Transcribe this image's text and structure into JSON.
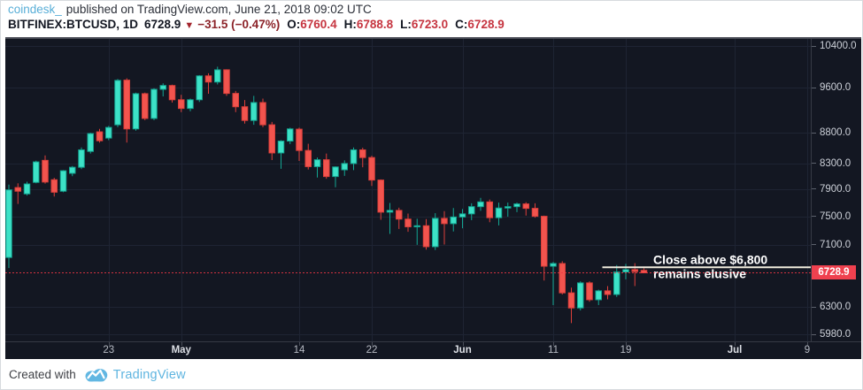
{
  "header": {
    "attribution": {
      "source": "coindesk_",
      "text": "published on TradingView.com, June 21, 2018 09:02 UTC"
    },
    "symbol_line": {
      "symbol": "BITFINEX:BTCUSD, 1D",
      "last": "6728.9",
      "direction": "▼",
      "change": "−31.5 (−0.47%)",
      "o_label": "O:",
      "o": "6760.4",
      "h_label": "H:",
      "h": "6788.8",
      "l_label": "L:",
      "l": "6723.0",
      "c_label": "C:",
      "c": "6728.9"
    }
  },
  "footer": {
    "created_with": "Created with",
    "brand": "TradingView"
  },
  "colors": {
    "chart_background": "#131722",
    "grid": "#1e2433",
    "up_fill": "#3de2c7",
    "up_border": "#13a692",
    "down_fill": "#f2544e",
    "down_border": "#dd3f3a",
    "last_price_line": "#f23645",
    "badge_background": "#ef414f",
    "level_line": "#f0ebdc",
    "annotation_text": "#ffffff",
    "accent_blue": "#58aed7"
  },
  "chart_data": {
    "type": "candlestick",
    "symbol": "BITFINEX:BTCUSD",
    "interval": "1D",
    "scale": "log",
    "grid": true,
    "price_axis": [
      {
        "label": "10400.0",
        "value": 10400
      },
      {
        "label": "9600.0",
        "value": 9600
      },
      {
        "label": "8800.0",
        "value": 8800
      },
      {
        "label": "8300.0",
        "value": 8300
      },
      {
        "label": "7900.0",
        "value": 7900
      },
      {
        "label": "7500.0",
        "value": 7500
      },
      {
        "label": "7100.0",
        "value": 7100
      },
      {
        "label": "6300.0",
        "value": 6300
      },
      {
        "label": "5980.0",
        "value": 5980
      }
    ],
    "last_price": {
      "label": "6728.9",
      "value": 6728.9
    },
    "time_axis": [
      {
        "label": "23",
        "index": 11,
        "major": false
      },
      {
        "label": "May",
        "index": 19,
        "major": true
      },
      {
        "label": "14",
        "index": 32,
        "major": false
      },
      {
        "label": "22",
        "index": 40,
        "major": false
      },
      {
        "label": "Jun",
        "index": 50,
        "major": true
      },
      {
        "label": "11",
        "index": 60,
        "major": false
      },
      {
        "label": "19",
        "index": 68,
        "major": false
      },
      {
        "label": "Jul",
        "index": 80,
        "major": true
      },
      {
        "label": "9",
        "index": 88,
        "major": false
      }
    ],
    "annotation": {
      "line1": "Close above $6,800",
      "line2": "remains elusive",
      "price": 6800,
      "start_index": 66
    },
    "candles": [
      [
        "Apr 12",
        6930,
        7970,
        6790,
        7890
      ],
      [
        "Apr 13",
        7925,
        7990,
        7680,
        7870
      ],
      [
        "Apr 14",
        7830,
        8015,
        7805,
        7980
      ],
      [
        "Apr 15",
        8005,
        8345,
        7990,
        8325
      ],
      [
        "Apr 16",
        8350,
        8430,
        7985,
        8010
      ],
      [
        "Apr 17",
        8045,
        8075,
        7790,
        7855
      ],
      [
        "Apr 18",
        7870,
        8195,
        7855,
        8185
      ],
      [
        "Apr 19",
        8145,
        8260,
        8100,
        8240
      ],
      [
        "Apr 20",
        8240,
        8560,
        8210,
        8520
      ],
      [
        "Apr 21",
        8495,
        8805,
        8460,
        8790
      ],
      [
        "Apr 22",
        8820,
        8870,
        8640,
        8670
      ],
      [
        "Apr 23",
        8715,
        8920,
        8680,
        8895
      ],
      [
        "Apr 24",
        8940,
        9760,
        8900,
        9735
      ],
      [
        "Apr 25",
        9740,
        9775,
        8640,
        8870
      ],
      [
        "Apr 26",
        8870,
        9510,
        8840,
        9490
      ],
      [
        "Apr 27",
        9490,
        9510,
        9020,
        9050
      ],
      [
        "Apr 28",
        9050,
        9590,
        9020,
        9570
      ],
      [
        "Apr 29",
        9570,
        9680,
        9440,
        9640
      ],
      [
        "Apr 30",
        9640,
        9655,
        9330,
        9380
      ],
      [
        "May 1",
        9380,
        9470,
        9160,
        9225
      ],
      [
        "May 2",
        9225,
        9400,
        9175,
        9380
      ],
      [
        "May 3",
        9380,
        9835,
        9340,
        9820
      ],
      [
        "May 4",
        9820,
        9870,
        9490,
        9705
      ],
      [
        "May 5",
        9705,
        9995,
        9660,
        9935
      ],
      [
        "May 6",
        9935,
        9945,
        9450,
        9495
      ],
      [
        "May 7",
        9495,
        9540,
        9160,
        9255
      ],
      [
        "May 8",
        9255,
        9375,
        8960,
        9015
      ],
      [
        "May 9",
        9015,
        9450,
        8940,
        9330
      ],
      [
        "May 10",
        9330,
        9400,
        8900,
        8940
      ],
      [
        "May 11",
        8940,
        8990,
        8355,
        8470
      ],
      [
        "May 12",
        8470,
        8680,
        8215,
        8665
      ],
      [
        "May 13",
        8665,
        8890,
        8615,
        8870
      ],
      [
        "May 14",
        8865,
        8890,
        8340,
        8510
      ],
      [
        "May 15",
        8510,
        8620,
        8205,
        8250
      ],
      [
        "May 16",
        8250,
        8395,
        8080,
        8360
      ],
      [
        "May 17",
        8360,
        8460,
        8060,
        8095
      ],
      [
        "May 18",
        8095,
        8255,
        7930,
        8245
      ],
      [
        "May 19",
        8200,
        8350,
        8105,
        8300
      ],
      [
        "May 20",
        8300,
        8560,
        8195,
        8520
      ],
      [
        "May 21",
        8520,
        8555,
        8240,
        8395
      ],
      [
        "May 22",
        8395,
        8425,
        7950,
        8040
      ],
      [
        "May 23",
        8040,
        8050,
        7450,
        7560
      ],
      [
        "May 24",
        7560,
        7695,
        7250,
        7585
      ],
      [
        "May 25",
        7585,
        7625,
        7320,
        7460
      ],
      [
        "May 26",
        7460,
        7540,
        7280,
        7350
      ],
      [
        "May 27",
        7350,
        7465,
        7100,
        7365
      ],
      [
        "May 28",
        7365,
        7460,
        7035,
        7075
      ],
      [
        "May 29",
        7075,
        7545,
        7030,
        7470
      ],
      [
        "May 30",
        7470,
        7575,
        7105,
        7395
      ],
      [
        "May 31",
        7395,
        7620,
        7285,
        7490
      ],
      [
        "Jun 1",
        7490,
        7605,
        7330,
        7535
      ],
      [
        "Jun 2",
        7535,
        7690,
        7445,
        7640
      ],
      [
        "Jun 3",
        7640,
        7770,
        7580,
        7710
      ],
      [
        "Jun 4",
        7710,
        7745,
        7415,
        7480
      ],
      [
        "Jun 5",
        7480,
        7700,
        7370,
        7620
      ],
      [
        "Jun 6",
        7620,
        7700,
        7495,
        7640
      ],
      [
        "Jun 7",
        7640,
        7700,
        7560,
        7680
      ],
      [
        "Jun 8",
        7680,
        7705,
        7510,
        7615
      ],
      [
        "Jun 9",
        7615,
        7690,
        7480,
        7500
      ],
      [
        "Jun 10",
        7500,
        7510,
        6630,
        6815
      ],
      [
        "Jun 11",
        6815,
        6870,
        6325,
        6850
      ],
      [
        "Jun 12",
        6850,
        6880,
        6455,
        6475
      ],
      [
        "Jun 13",
        6475,
        6540,
        6110,
        6290
      ],
      [
        "Jun 14",
        6290,
        6620,
        6260,
        6600
      ],
      [
        "Jun 15",
        6600,
        6620,
        6365,
        6390
      ],
      [
        "Jun 16",
        6390,
        6515,
        6325,
        6500
      ],
      [
        "Jun 17",
        6500,
        6560,
        6395,
        6455
      ],
      [
        "Jun 18",
        6455,
        6830,
        6425,
        6740
      ],
      [
        "Jun 19",
        6740,
        6845,
        6645,
        6770
      ],
      [
        "Jun 20",
        6770,
        6855,
        6560,
        6745
      ],
      [
        "Jun 21",
        6760.4,
        6788.8,
        6723.0,
        6728.9
      ]
    ]
  }
}
